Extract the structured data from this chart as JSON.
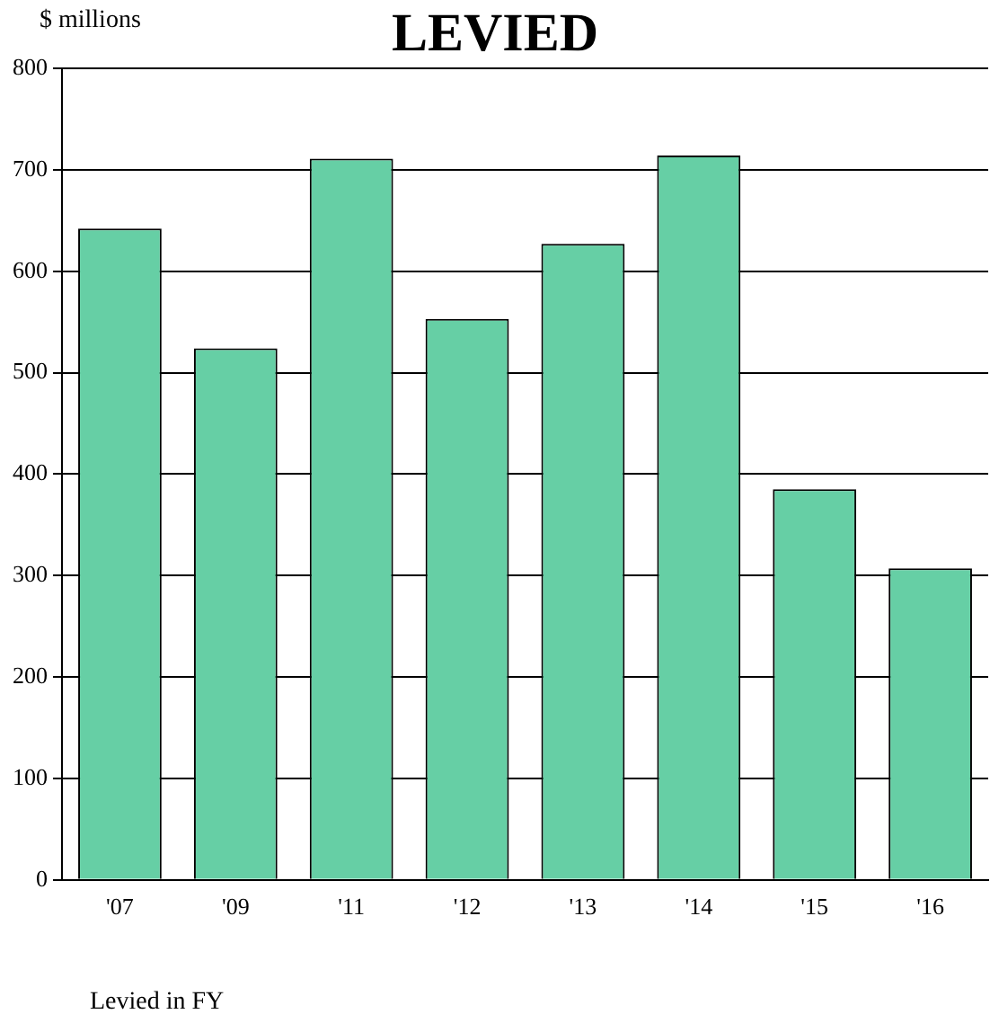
{
  "chart_data": {
    "type": "bar",
    "title": "LEVIED",
    "ylabel": "$ millions",
    "xlabel": "Levied in FY",
    "categories": [
      "'07",
      "'09",
      "'11",
      "'12",
      "'13",
      "'14",
      "'15",
      "'16"
    ],
    "values": [
      642,
      524,
      711,
      553,
      627,
      714,
      385,
      307
    ],
    "color": "#66cfa5",
    "ylim": [
      0,
      800
    ],
    "yticks": [
      0,
      100,
      200,
      300,
      400,
      500,
      600,
      700,
      800
    ],
    "grid": "y",
    "legend": false
  }
}
